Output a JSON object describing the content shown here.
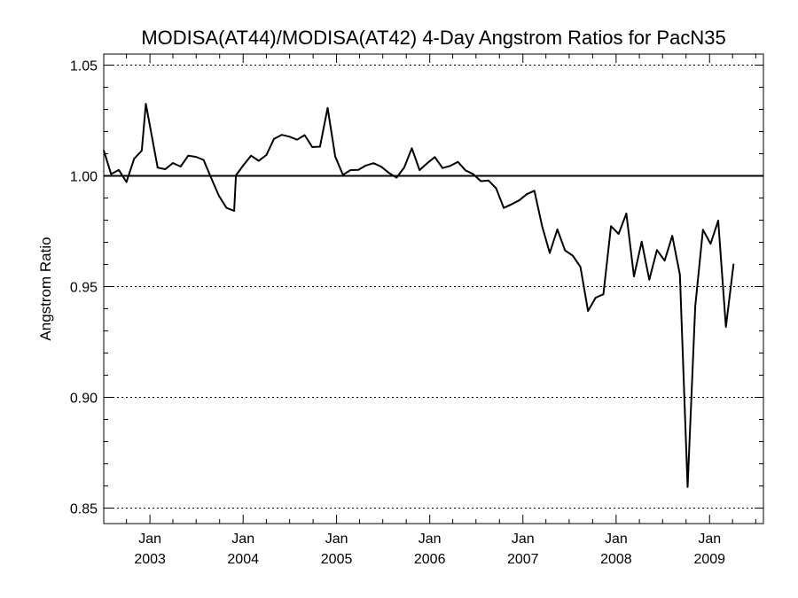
{
  "chart_data": {
    "type": "line",
    "title": "MODISA(AT44)/MODISA(AT42) 4-Day Angstrom Ratios for PacN35",
    "xlabel": "",
    "ylabel": "Angstrom Ratio",
    "xlim": [
      "2002-07-04",
      "2009-07-31"
    ],
    "ylim": [
      0.843,
      1.055
    ],
    "grid": "horizontal dotted at major y ticks",
    "reference_line": 1.0,
    "y_ticks": [
      {
        "value": 0.85,
        "label": "0.85"
      },
      {
        "value": 0.9,
        "label": "0.90"
      },
      {
        "value": 0.95,
        "label": "0.95"
      },
      {
        "value": 1.0,
        "label": "1.00"
      },
      {
        "value": 1.05,
        "label": "1.05"
      }
    ],
    "x_ticks": [
      {
        "date": "2003-01-01",
        "month": "Jan",
        "year": "2003"
      },
      {
        "date": "2004-01-01",
        "month": "Jan",
        "year": "2004"
      },
      {
        "date": "2005-01-01",
        "month": "Jan",
        "year": "2005"
      },
      {
        "date": "2006-01-01",
        "month": "Jan",
        "year": "2006"
      },
      {
        "date": "2007-01-01",
        "month": "Jan",
        "year": "2007"
      },
      {
        "date": "2008-01-01",
        "month": "Jan",
        "year": "2008"
      },
      {
        "date": "2009-01-01",
        "month": "Jan",
        "year": "2009"
      }
    ],
    "series": [
      {
        "points": [
          [
            "2002-07-04",
            1.0115
          ],
          [
            "2002-08-02",
            1.0008
          ],
          [
            "2002-09-01",
            1.0027
          ],
          [
            "2002-10-01",
            0.9972
          ],
          [
            "2002-10-31",
            1.0077
          ],
          [
            "2002-11-30",
            1.0114
          ],
          [
            "2002-12-16",
            1.0325
          ],
          [
            "2003-01-31",
            1.0037
          ],
          [
            "2003-03-02",
            1.003
          ],
          [
            "2003-04-01",
            1.0058
          ],
          [
            "2003-05-01",
            1.0042
          ],
          [
            "2003-05-31",
            1.0091
          ],
          [
            "2003-06-30",
            1.0086
          ],
          [
            "2003-07-30",
            1.0072
          ],
          [
            "2003-08-29",
            0.999
          ],
          [
            "2003-09-28",
            0.991
          ],
          [
            "2003-10-28",
            0.9855
          ],
          [
            "2003-11-27",
            0.9842
          ],
          [
            "2003-12-04",
            1.0002
          ],
          [
            "2004-01-02",
            1.0048
          ],
          [
            "2004-02-01",
            1.0091
          ],
          [
            "2004-03-02",
            1.0068
          ],
          [
            "2004-04-01",
            1.0094
          ],
          [
            "2004-05-01",
            1.0167
          ],
          [
            "2004-05-31",
            1.0185
          ],
          [
            "2004-06-30",
            1.0177
          ],
          [
            "2004-07-30",
            1.0163
          ],
          [
            "2004-08-29",
            1.0184
          ],
          [
            "2004-09-28",
            1.013
          ],
          [
            "2004-10-28",
            1.0132
          ],
          [
            "2004-11-27",
            1.0307
          ],
          [
            "2004-12-27",
            1.0087
          ],
          [
            "2005-01-26",
            1.0005
          ],
          [
            "2005-02-25",
            1.0026
          ],
          [
            "2005-03-27",
            1.0027
          ],
          [
            "2005-04-26",
            1.0047
          ],
          [
            "2005-05-26",
            1.0057
          ],
          [
            "2005-06-25",
            1.0041
          ],
          [
            "2005-07-25",
            1.0013
          ],
          [
            "2005-08-24",
            0.9992
          ],
          [
            "2005-09-23",
            1.0038
          ],
          [
            "2005-10-23",
            1.0125
          ],
          [
            "2005-11-22",
            1.0026
          ],
          [
            "2005-12-22",
            1.0057
          ],
          [
            "2006-01-21",
            1.0085
          ],
          [
            "2006-02-20",
            1.0035
          ],
          [
            "2006-03-22",
            1.0045
          ],
          [
            "2006-04-21",
            1.0063
          ],
          [
            "2006-05-21",
            1.0025
          ],
          [
            "2006-06-20",
            1.0008
          ],
          [
            "2006-07-20",
            0.9976
          ],
          [
            "2006-08-19",
            0.9979
          ],
          [
            "2006-09-18",
            0.9944
          ],
          [
            "2006-10-18",
            0.9855
          ],
          [
            "2006-11-17",
            0.9871
          ],
          [
            "2006-12-17",
            0.9889
          ],
          [
            "2007-01-16",
            0.9917
          ],
          [
            "2007-02-15",
            0.9933
          ],
          [
            "2007-03-17",
            0.9773
          ],
          [
            "2007-04-16",
            0.9652
          ],
          [
            "2007-05-16",
            0.9758
          ],
          [
            "2007-06-15",
            0.9663
          ],
          [
            "2007-07-15",
            0.964
          ],
          [
            "2007-08-14",
            0.9589
          ],
          [
            "2007-09-13",
            0.939
          ],
          [
            "2007-10-13",
            0.945
          ],
          [
            "2007-11-12",
            0.9465
          ],
          [
            "2007-12-12",
            0.9773
          ],
          [
            "2008-01-11",
            0.9738
          ],
          [
            "2008-02-10",
            0.983
          ],
          [
            "2008-03-11",
            0.9546
          ],
          [
            "2008-04-10",
            0.9703
          ],
          [
            "2008-05-10",
            0.9531
          ],
          [
            "2008-06-09",
            0.9665
          ],
          [
            "2008-07-09",
            0.9617
          ],
          [
            "2008-08-08",
            0.9729
          ],
          [
            "2008-09-07",
            0.9554
          ],
          [
            "2008-10-07",
            0.8595
          ],
          [
            "2008-11-06",
            0.941
          ],
          [
            "2008-12-06",
            0.9757
          ],
          [
            "2009-01-05",
            0.9693
          ],
          [
            "2009-02-04",
            0.9798
          ],
          [
            "2009-03-06",
            0.9318
          ],
          [
            "2009-04-05",
            0.9601
          ]
        ]
      }
    ]
  }
}
